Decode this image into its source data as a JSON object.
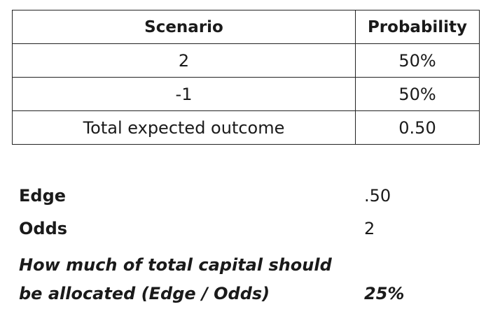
{
  "table": {
    "headers": [
      "Scenario",
      "Probability"
    ],
    "rows": [
      [
        "2",
        "50%"
      ],
      [
        "-1",
        "50%"
      ],
      [
        "Total expected outcome",
        "0.50"
      ]
    ]
  },
  "summary": {
    "edge_label": "Edge",
    "edge_value": ".50",
    "odds_label": "Odds",
    "odds_value": "2",
    "allocation_label_line1": "How much of total capital should",
    "allocation_label_line2": "be allocated (Edge / Odds)",
    "allocation_value": "25%"
  }
}
